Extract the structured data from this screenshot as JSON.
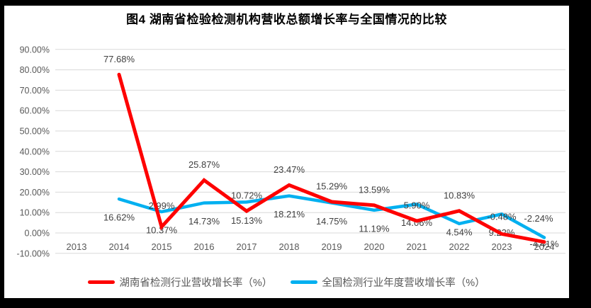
{
  "frame": {
    "background": "#000000",
    "chart_background": "#FFFFFF"
  },
  "chart_data": {
    "type": "line",
    "title": "图4 湖南省检验检测机构营收总额增长率与全国情况的比较",
    "categories": [
      "2013",
      "2014",
      "2015",
      "2016",
      "2017",
      "2018",
      "2019",
      "2020",
      "2021",
      "2022",
      "2023",
      "2024"
    ],
    "series": [
      {
        "name": "湖南省检测行业营收增长率（%）",
        "color": "#FE0000",
        "values": [
          null,
          77.68,
          2.99,
          25.87,
          10.72,
          23.47,
          15.29,
          13.59,
          5.9,
          10.83,
          -0.48,
          -4.41
        ],
        "labels": [
          "",
          "77.68%",
          "2.99%",
          "25.87%",
          "10.72%",
          "23.47%",
          "15.29%",
          "13.59%",
          "5.90%",
          "10.83%",
          "-0.48%",
          "-4.41%"
        ]
      },
      {
        "name": "全国检测行业年度营收增长率（%）",
        "color": "#00B0F0",
        "values": [
          null,
          16.62,
          10.37,
          14.73,
          15.13,
          18.21,
          14.75,
          11.19,
          14.06,
          4.54,
          9.22,
          -2.24
        ],
        "labels": [
          "",
          "16.62%",
          "10.37%",
          "14.73%",
          "15.13%",
          "18.21%",
          "14.75%",
          "11.19%",
          "14.06%",
          "4.54%",
          "9.22%",
          "-2.24%"
        ]
      }
    ],
    "y_axis": {
      "min": -10,
      "max": 90,
      "step": 10,
      "tick_labels": [
        "90.00%",
        "80.00%",
        "70.00%",
        "60.00%",
        "50.00%",
        "40.00%",
        "30.00%",
        "20.00%",
        "10.00%",
        "0.00%",
        "-10.00%"
      ]
    },
    "grid": true,
    "legend_position": "bottom",
    "colors": {
      "gridline": "#D9D9D9",
      "axis_text": "#595959",
      "data_label": "#404040",
      "title_text": "#000000"
    }
  }
}
